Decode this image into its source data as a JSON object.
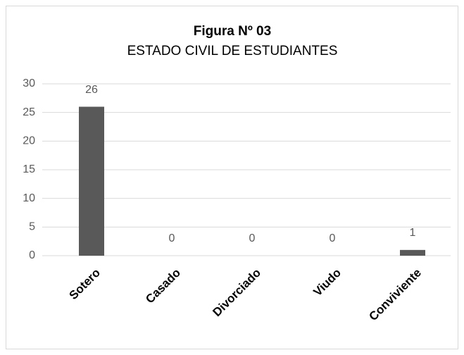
{
  "chart_data": {
    "type": "bar",
    "title": "Figura Nº 03",
    "subtitle": "ESTADO CIVIL DE ESTUDIANTES",
    "categories": [
      "Sotero",
      "Casado",
      "Divorciado",
      "Viudo",
      "Conviviente"
    ],
    "values": [
      26,
      0,
      0,
      0,
      1
    ],
    "color": "#595959",
    "ylim": [
      0,
      30
    ],
    "yticks": [
      0,
      5,
      10,
      15,
      20,
      25,
      30
    ],
    "grid": true
  }
}
